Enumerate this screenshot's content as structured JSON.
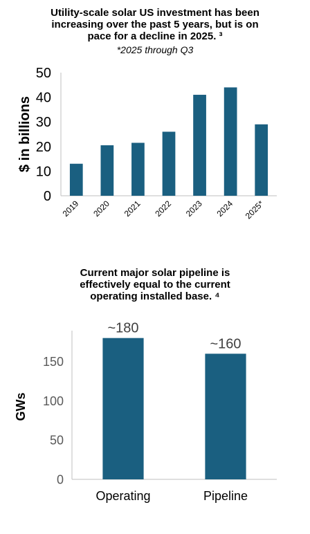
{
  "chart_data": [
    {
      "type": "bar",
      "title": "Utility-scale solar US investment has been increasing over the past 5 years, but is on pace for a decline in 2025. ³",
      "subtitle": "*2025 through Q3",
      "xlabel": "",
      "ylabel": "$ in billions",
      "categories": [
        "2019",
        "2020",
        "2021",
        "2022",
        "2023",
        "2024",
        "2025*"
      ],
      "values": [
        13,
        20.5,
        21.5,
        26,
        41,
        44,
        29
      ],
      "ylim": [
        0,
        50
      ],
      "yticks": [
        0,
        10,
        20,
        30,
        40,
        50
      ],
      "grid": false,
      "legend": "none",
      "bar_color": "#1a5f80"
    },
    {
      "type": "bar",
      "title": "Current major solar pipeline is effectively equal to the current operating installed base. ⁴",
      "subtitle": "",
      "xlabel": "",
      "ylabel": "GWs",
      "categories": [
        "Operating",
        "Pipeline"
      ],
      "values": [
        180,
        160
      ],
      "data_labels": [
        "~180",
        "~160"
      ],
      "ylim": [
        0,
        185
      ],
      "yticks": [
        0,
        50,
        100,
        150
      ],
      "grid": false,
      "legend": "none",
      "bar_color": "#1a5f80"
    }
  ]
}
